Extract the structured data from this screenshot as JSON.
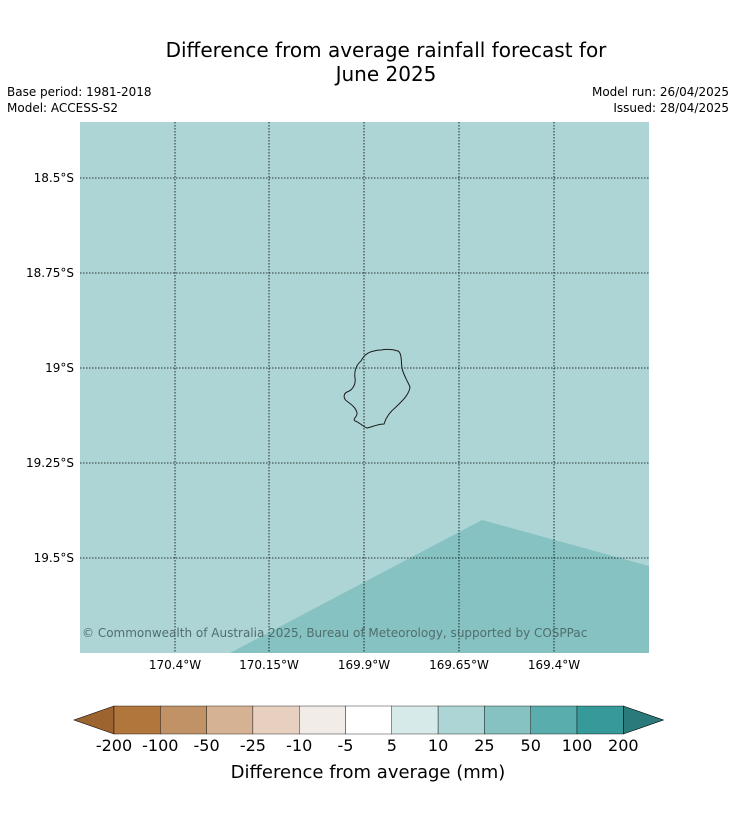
{
  "title_line1": "Difference from average rainfall forecast for",
  "title_line2": "June 2025",
  "meta_left": {
    "base_period": "Base period: 1981-2018",
    "model": "Model: ACCESS-S2"
  },
  "meta_right": {
    "model_run": "Model run: 26/04/2025",
    "issued": "Issued: 28/04/2025"
  },
  "map": {
    "lat_labels": [
      "18.5°S",
      "18.75°S",
      "19°S",
      "19.25°S",
      "19.5°S"
    ],
    "lon_labels": [
      "170.4°W",
      "170.15°W",
      "169.9°W",
      "169.65°W",
      "169.4°W"
    ],
    "background_color": "#aed5d5",
    "zone_color": "#86c2c1",
    "copyright": "© Commonwealth of Australia 2025, Bureau of Meteorology, supported by COSPPac"
  },
  "colorbar": {
    "title": "Difference from average (mm)",
    "tick_labels": [
      "-200",
      "-100",
      "-50",
      "-25",
      "-10",
      "-5",
      "5",
      "10",
      "25",
      "50",
      "100",
      "200"
    ],
    "colors": [
      "#9e6430",
      "#b0763c",
      "#c19265",
      "#d5b293",
      "#e7d0bf",
      "#f1ece8",
      "#ffffff",
      "#d6eaea",
      "#aed5d5",
      "#86c2c1",
      "#5aadad",
      "#359a99",
      "#2a7a79"
    ]
  }
}
